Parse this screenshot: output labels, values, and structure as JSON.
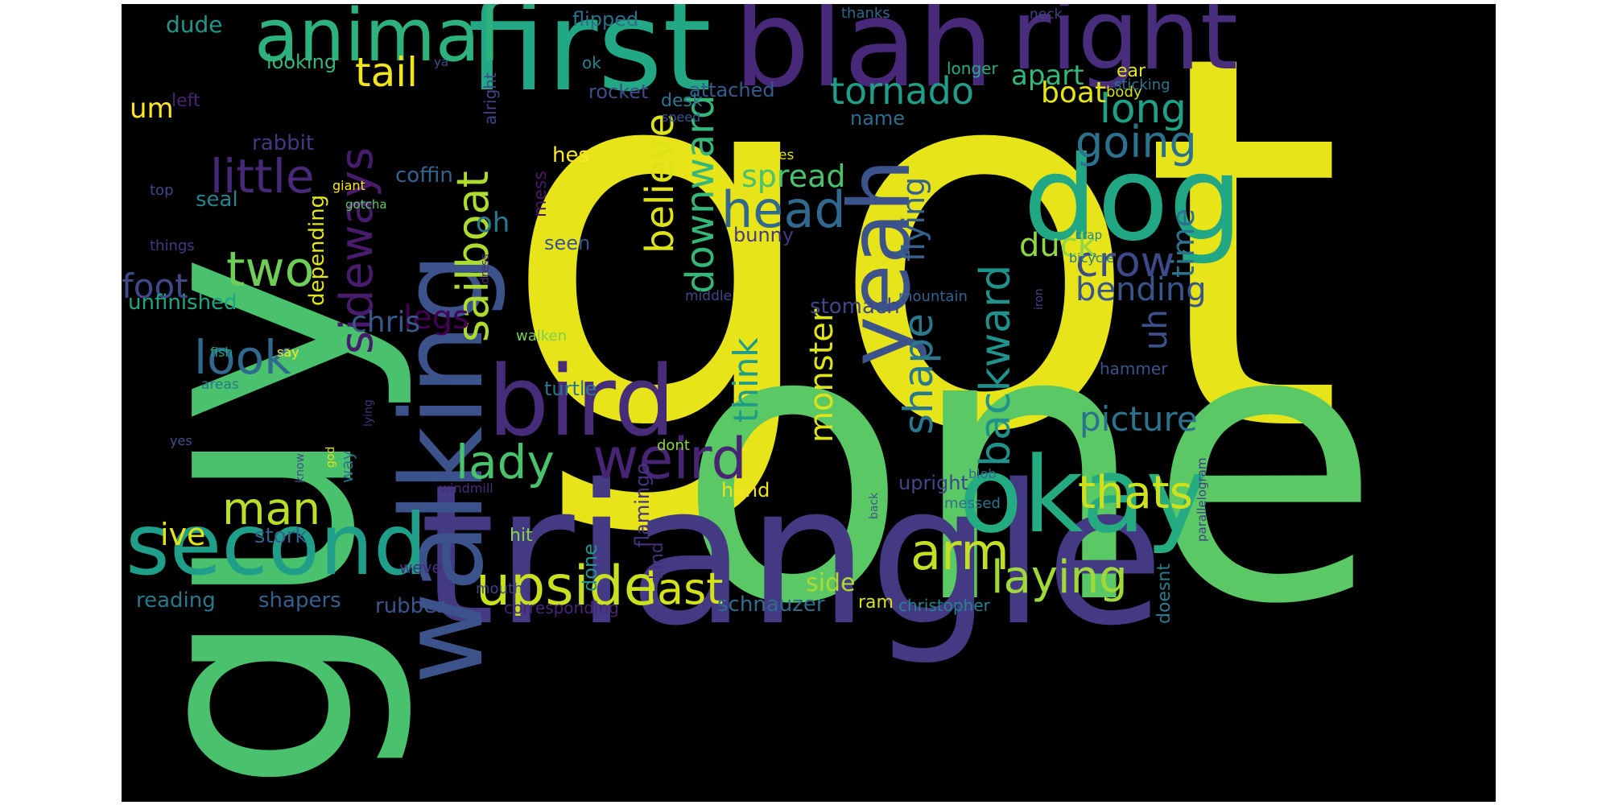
{
  "wordcloud": {
    "background": "#000000",
    "words": [
      {
        "text": "got",
        "color": "#e7e419"
      },
      {
        "text": "one",
        "color": "#5ac864"
      },
      {
        "text": "guy",
        "color": "#4ac16d"
      },
      {
        "text": "triangle",
        "color": "#443983"
      },
      {
        "text": "first",
        "color": "#22a884"
      },
      {
        "text": "blah",
        "color": "#482878"
      },
      {
        "text": "walking",
        "color": "#3b528b"
      },
      {
        "text": "right",
        "color": "#472d7b"
      },
      {
        "text": "dog",
        "color": "#22a785"
      },
      {
        "text": "bird",
        "color": "#472c7a"
      },
      {
        "text": "okay",
        "color": "#25ab82"
      },
      {
        "text": "second",
        "color": "#1f9e89"
      },
      {
        "text": "animal",
        "color": "#2db27d"
      },
      {
        "text": "yeah",
        "color": "#3b528b"
      },
      {
        "text": "upside",
        "color": "#c8e020"
      },
      {
        "text": "weird",
        "color": "#482475"
      },
      {
        "text": "little",
        "color": "#482979"
      },
      {
        "text": "head",
        "color": "#31688e"
      },
      {
        "text": "thats",
        "color": "#d0e11c"
      },
      {
        "text": "two",
        "color": "#6ece58"
      },
      {
        "text": "arm",
        "color": "#c2df23"
      },
      {
        "text": "laying",
        "color": "#a0da39"
      },
      {
        "text": "last",
        "color": "#d5e21a"
      },
      {
        "text": "lady",
        "color": "#4ac16d"
      },
      {
        "text": "man",
        "color": "#b8de29"
      },
      {
        "text": "look",
        "color": "#31688e"
      },
      {
        "text": "sideways",
        "color": "#481b6d"
      },
      {
        "text": "sailboat",
        "color": "#addc30"
      },
      {
        "text": "going",
        "color": "#2c728e"
      },
      {
        "text": "crow",
        "color": "#3e4989"
      },
      {
        "text": "long",
        "color": "#1fa187"
      },
      {
        "text": "tail",
        "color": "#f1e51d"
      },
      {
        "text": "tornado",
        "color": "#1f9e89"
      },
      {
        "text": "backward",
        "color": "#21918c"
      },
      {
        "text": "shape",
        "color": "#2a788e"
      },
      {
        "text": "downward",
        "color": "#35b779"
      },
      {
        "text": "believe",
        "color": "#dde318"
      },
      {
        "text": "monster",
        "color": "#dde318"
      },
      {
        "text": "picture",
        "color": "#2c728e"
      },
      {
        "text": "flying",
        "color": "#34618d"
      },
      {
        "text": "duck",
        "color": "#90d743"
      },
      {
        "text": "bending",
        "color": "#39568c"
      },
      {
        "text": "spread",
        "color": "#4ac16d"
      },
      {
        "text": "think",
        "color": "#1e9b8a"
      },
      {
        "text": "foot",
        "color": "#3e4989"
      },
      {
        "text": "legs",
        "color": "#440154"
      },
      {
        "text": "uh",
        "color": "#3b528b"
      },
      {
        "text": "time",
        "color": "#2c728e"
      },
      {
        "text": "boat",
        "color": "#e5e419"
      },
      {
        "text": "apart",
        "color": "#35b779"
      },
      {
        "text": "um",
        "color": "#fde725"
      },
      {
        "text": "chris",
        "color": "#38588c"
      },
      {
        "text": "ive",
        "color": "#e2e418"
      },
      {
        "text": "oh",
        "color": "#2a788e"
      },
      {
        "text": "side",
        "color": "#addc30"
      },
      {
        "text": "schnauzer",
        "color": "#2f6c8e"
      },
      {
        "text": "rubber",
        "color": "#3a548c"
      },
      {
        "text": "shapers",
        "color": "#355f8d"
      },
      {
        "text": "reading",
        "color": "#29798e"
      },
      {
        "text": "stork",
        "color": "#33638d"
      },
      {
        "text": "unfinished",
        "color": "#21a685"
      },
      {
        "text": "depending",
        "color": "#e2e418"
      },
      {
        "text": "stomach",
        "color": "#3e4989"
      },
      {
        "text": "dude",
        "color": "#1f958b"
      },
      {
        "text": "looking",
        "color": "#35b779"
      },
      {
        "text": "rocket",
        "color": "#3d4e8a"
      },
      {
        "text": "attached",
        "color": "#365c8d"
      },
      {
        "text": "desk",
        "color": "#2a768e"
      },
      {
        "text": "hes",
        "color": "#fde725"
      },
      {
        "text": "coffin",
        "color": "#33638d"
      },
      {
        "text": "rabbit",
        "color": "#453882"
      },
      {
        "text": "seal",
        "color": "#26828e"
      },
      {
        "text": "seen",
        "color": "#39568c"
      },
      {
        "text": "bunny",
        "color": "#443983"
      },
      {
        "text": "name",
        "color": "#2f6c8e"
      },
      {
        "text": "upright",
        "color": "#404688"
      },
      {
        "text": "hand",
        "color": "#f1e51d"
      },
      {
        "text": "hit",
        "color": "#86d549"
      },
      {
        "text": "done",
        "color": "#1f958b"
      },
      {
        "text": "turtle",
        "color": "#2a768e"
      },
      {
        "text": "flamingo",
        "color": "#46337e"
      },
      {
        "text": "kind",
        "color": "#472d7b"
      },
      {
        "text": "weve",
        "color": "#46307e"
      },
      {
        "text": "mouth",
        "color": "#3f4788"
      },
      {
        "text": "ram",
        "color": "#d8e219"
      },
      {
        "text": "christopher",
        "color": "#26828e"
      },
      {
        "text": "corresponding",
        "color": "#482475"
      },
      {
        "text": "doesnt",
        "color": "#287c8e"
      },
      {
        "text": "messed",
        "color": "#2c728e"
      },
      {
        "text": "hammer",
        "color": "#3b528b"
      },
      {
        "text": "ear",
        "color": "#e5e419"
      },
      {
        "text": "body",
        "color": "#d2e21b"
      },
      {
        "text": "sticking",
        "color": "#2a768e"
      },
      {
        "text": "longer",
        "color": "#25ac82"
      },
      {
        "text": "thanks",
        "color": "#31688e"
      },
      {
        "text": "neck",
        "color": "#424186"
      },
      {
        "text": "flipped",
        "color": "#2d708e"
      },
      {
        "text": "ok",
        "color": "#26828e"
      },
      {
        "text": "ya",
        "color": "#3d4d8a"
      },
      {
        "text": "alright",
        "color": "#3f4788"
      },
      {
        "text": "speed",
        "color": "#39568c"
      },
      {
        "text": "mess",
        "color": "#481769"
      },
      {
        "text": "sales",
        "color": "#e5e419"
      },
      {
        "text": "giant",
        "color": "#fde725"
      },
      {
        "text": "top",
        "color": "#3e4989"
      },
      {
        "text": "gotcha",
        "color": "#5ec962"
      },
      {
        "text": "left",
        "color": "#482173"
      },
      {
        "text": "things",
        "color": "#453882"
      },
      {
        "text": "crap",
        "color": "#26828e"
      },
      {
        "text": "bicycle",
        "color": "#29798e"
      },
      {
        "text": "dress",
        "color": "#472c7a"
      },
      {
        "text": "middle",
        "color": "#3e4989"
      },
      {
        "text": "mountain",
        "color": "#33638d"
      },
      {
        "text": "iron",
        "color": "#414487"
      },
      {
        "text": "walken",
        "color": "#7ad151"
      },
      {
        "text": "fish",
        "color": "#21a685"
      },
      {
        "text": "say",
        "color": "#fde725"
      },
      {
        "text": "areas",
        "color": "#2a788e"
      },
      {
        "text": "lying",
        "color": "#46307e"
      },
      {
        "text": "dont",
        "color": "#90d743"
      },
      {
        "text": "yes",
        "color": "#3b528b"
      },
      {
        "text": "know",
        "color": "#3e4989"
      },
      {
        "text": "god",
        "color": "#e2e418"
      },
      {
        "text": "way",
        "color": "#2a788e"
      },
      {
        "text": "windmill",
        "color": "#472d7b"
      },
      {
        "text": "back",
        "color": "#38588c"
      },
      {
        "text": "blob",
        "color": "#306a8e"
      },
      {
        "text": "parallelogram",
        "color": "#424186"
      }
    ]
  }
}
